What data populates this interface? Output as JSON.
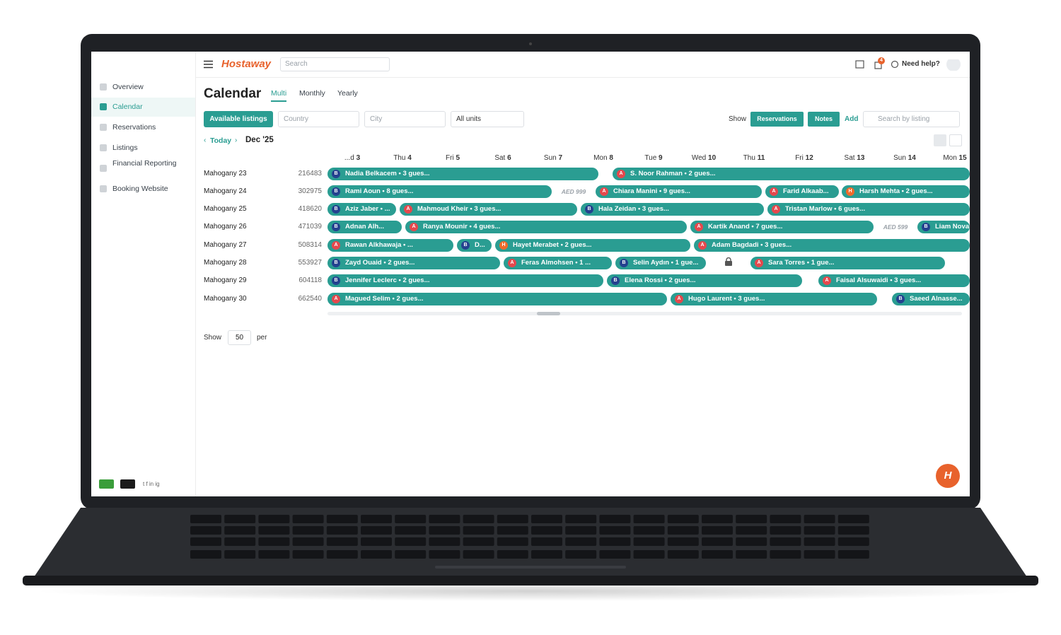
{
  "header": {
    "brand": "Hostaway",
    "search_placeholder": "Search",
    "notification_count": "4",
    "help": "Need help?"
  },
  "sidebar": {
    "items": [
      "Overview",
      "Calendar",
      "Reservations",
      "Listings",
      "Financial Reporting",
      "Booking Website"
    ],
    "social": "t f in ig"
  },
  "page": {
    "title": "Calendar",
    "tabs": [
      "Multi",
      "Monthly",
      "Yearly"
    ]
  },
  "filters": {
    "available": "Available listings",
    "country": "Country",
    "city": "City",
    "units": "All units",
    "show": "Show",
    "reservations": "Reservations",
    "notes": "Notes",
    "add": "Add",
    "search": "Search by listing"
  },
  "nav": {
    "today": "Today",
    "month": "Dec '25"
  },
  "days": [
    {
      "name": "...d",
      "num": "3"
    },
    {
      "name": "Thu",
      "num": "4"
    },
    {
      "name": "Fri",
      "num": "5"
    },
    {
      "name": "Sat",
      "num": "6"
    },
    {
      "name": "Sun",
      "num": "7"
    },
    {
      "name": "Mon",
      "num": "8"
    },
    {
      "name": "Tue",
      "num": "9"
    },
    {
      "name": "Wed",
      "num": "10"
    },
    {
      "name": "Thu",
      "num": "11"
    },
    {
      "name": "Fri",
      "num": "12"
    },
    {
      "name": "Sat",
      "num": "13"
    },
    {
      "name": "Sun",
      "num": "14"
    },
    {
      "name": "Mon",
      "num": "15"
    }
  ],
  "rows": [
    {
      "name": "Mahogany 23",
      "id": "216483",
      "bookings": [
        {
          "channel": "B",
          "guest": "Nadia Belkacem • 3 gues..."
        },
        {
          "channel": "A",
          "guest": "S. Noor Rahman • 2 gues..."
        }
      ],
      "prices": []
    },
    {
      "name": "Mahogany 24",
      "id": "302975",
      "bookings": [
        {
          "channel": "B",
          "guest": "Rami Aoun • 8 gues..."
        },
        {
          "channel": "A",
          "guest": "Chiara Manini • 9 gues..."
        },
        {
          "channel": "A",
          "guest": "Farid Alkaab..."
        },
        {
          "channel": "H",
          "guest": "Harsh Mehta • 2 gues..."
        }
      ],
      "prices": [
        "AED 999"
      ]
    },
    {
      "name": "Mahogany 25",
      "id": "418620",
      "bookings": [
        {
          "channel": "B",
          "guest": "Aziz Jaber • ..."
        },
        {
          "channel": "A",
          "guest": "Mahmoud Kheir • 3 gues..."
        },
        {
          "channel": "B",
          "guest": "Hala Zeidan • 3 gues..."
        },
        {
          "channel": "A",
          "guest": "Tristan Marlow • 6 gues..."
        }
      ],
      "prices": []
    },
    {
      "name": "Mahogany 26",
      "id": "471039",
      "bookings": [
        {
          "channel": "B",
          "guest": "Adnan Alh..."
        },
        {
          "channel": "A",
          "guest": "Ranya Mounir • 4 gues..."
        },
        {
          "channel": "A",
          "guest": "Kartik Anand • 7 gues..."
        },
        {
          "channel": "B",
          "guest": "Liam Novak"
        }
      ],
      "prices": [
        "AED 599"
      ]
    },
    {
      "name": "Mahogany 27",
      "id": "508314",
      "bookings": [
        {
          "channel": "A",
          "guest": "Rawan Alkhawaja • ..."
        },
        {
          "channel": "B",
          "guest": "D..."
        },
        {
          "channel": "H",
          "guest": "Hayet Merabet • 2 gues..."
        },
        {
          "channel": "A",
          "guest": "Adam Bagdadi • 3 gues..."
        }
      ],
      "prices": []
    },
    {
      "name": "Mahogany 28",
      "id": "553927",
      "bookings": [
        {
          "channel": "B",
          "guest": "Zayd Ouaid • 2 gues..."
        },
        {
          "channel": "A",
          "guest": "Feras Almohsen • 1 ..."
        },
        {
          "channel": "B",
          "guest": "Selin Aydın • 1 gue..."
        },
        {
          "channel": "A",
          "guest": "Sara Torres • 1 gue..."
        }
      ],
      "prices": []
    },
    {
      "name": "Mahogany 29",
      "id": "604118",
      "bookings": [
        {
          "channel": "B",
          "guest": "Jennifer Leclerc • 2 gues..."
        },
        {
          "channel": "B",
          "guest": "Elena Rossi • 2 gues..."
        },
        {
          "channel": "A",
          "guest": "Faisal Alsuwaidi • 3 gues..."
        }
      ],
      "prices": []
    },
    {
      "name": "Mahogany 30",
      "id": "662540",
      "bookings": [
        {
          "channel": "A",
          "guest": "Magued Selim • 2 gues..."
        },
        {
          "channel": "A",
          "guest": "Hugo Laurent • 3 gues..."
        },
        {
          "channel": "B",
          "guest": "Saeed Alnasse..."
        }
      ],
      "prices": []
    }
  ],
  "pagination": {
    "show": "Show",
    "per_page": "50",
    "per": "per"
  },
  "fab": "H"
}
